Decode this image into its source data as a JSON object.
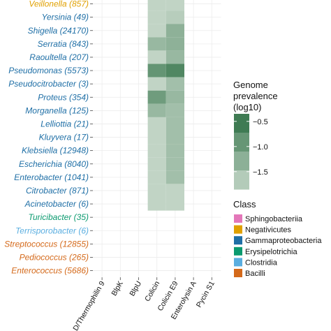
{
  "chart_data": {
    "type": "heatmap",
    "columns": [
      "D/Thermophilin 9",
      "BlpK",
      "BlpU",
      "Colicin",
      "Colicin E9",
      "Enterolysin A",
      "Pycin S1"
    ],
    "rows": [
      {
        "label": "Veillonella (857)",
        "class": "Negativicutes"
      },
      {
        "label": "Yersinia (49)",
        "class": "Gammaproteobacteria"
      },
      {
        "label": "Shigella (24170)",
        "class": "Gammaproteobacteria"
      },
      {
        "label": "Serratia (843)",
        "class": "Gammaproteobacteria"
      },
      {
        "label": "Raoultella (207)",
        "class": "Gammaproteobacteria"
      },
      {
        "label": "Pseudomonas (5573)",
        "class": "Gammaproteobacteria"
      },
      {
        "label": "Pseudocitrobacter (3)",
        "class": "Gammaproteobacteria"
      },
      {
        "label": "Proteus (354)",
        "class": "Gammaproteobacteria"
      },
      {
        "label": "Morganella (125)",
        "class": "Gammaproteobacteria"
      },
      {
        "label": "Lelliottia (21)",
        "class": "Gammaproteobacteria"
      },
      {
        "label": "Kluyvera (17)",
        "class": "Gammaproteobacteria"
      },
      {
        "label": "Klebsiella (12948)",
        "class": "Gammaproteobacteria"
      },
      {
        "label": "Escherichia (8040)",
        "class": "Gammaproteobacteria"
      },
      {
        "label": "Enterobacter (1041)",
        "class": "Gammaproteobacteria"
      },
      {
        "label": "Citrobacter (871)",
        "class": "Gammaproteobacteria"
      },
      {
        "label": "Acinetobacter (6)",
        "class": "Gammaproteobacteria"
      },
      {
        "label": "Turicibacter (35)",
        "class": "Erysipelotrichia"
      },
      {
        "label": "Terrisporobacter (6)",
        "class": "Clostridia"
      },
      {
        "label": "Streptococcus (12855)",
        "class": "Bacilli"
      },
      {
        "label": "Pediococcus (265)",
        "class": "Bacilli"
      },
      {
        "label": "Enterococcus (5686)",
        "class": "Bacilli"
      }
    ],
    "cells": [
      {
        "row": 0,
        "col": 3,
        "value": -1.8
      },
      {
        "row": 0,
        "col": 4,
        "value": -1.8
      },
      {
        "row": 1,
        "col": 3,
        "value": -1.8
      },
      {
        "row": 1,
        "col": 4,
        "value": -1.7
      },
      {
        "row": 2,
        "col": 3,
        "value": -1.8
      },
      {
        "row": 2,
        "col": 4,
        "value": -1.3
      },
      {
        "row": 3,
        "col": 3,
        "value": -1.4
      },
      {
        "row": 3,
        "col": 4,
        "value": -1.3
      },
      {
        "row": 4,
        "col": 3,
        "value": -1.8
      },
      {
        "row": 4,
        "col": 4,
        "value": -1.4
      },
      {
        "row": 5,
        "col": 3,
        "value": -0.9
      },
      {
        "row": 5,
        "col": 4,
        "value": -0.7
      },
      {
        "row": 6,
        "col": 3,
        "value": -1.8
      },
      {
        "row": 6,
        "col": 4,
        "value": -1.5
      },
      {
        "row": 7,
        "col": 3,
        "value": -1.0
      },
      {
        "row": 7,
        "col": 4,
        "value": -1.4
      },
      {
        "row": 8,
        "col": 3,
        "value": -1.4
      },
      {
        "row": 8,
        "col": 4,
        "value": -1.5
      },
      {
        "row": 9,
        "col": 3,
        "value": -1.8
      },
      {
        "row": 9,
        "col": 4,
        "value": -1.5
      },
      {
        "row": 10,
        "col": 3,
        "value": -1.8
      },
      {
        "row": 10,
        "col": 4,
        "value": -1.5
      },
      {
        "row": 11,
        "col": 3,
        "value": -1.8
      },
      {
        "row": 11,
        "col": 4,
        "value": -1.5
      },
      {
        "row": 12,
        "col": 3,
        "value": -1.8
      },
      {
        "row": 12,
        "col": 4,
        "value": -1.5
      },
      {
        "row": 13,
        "col": 3,
        "value": -1.8
      },
      {
        "row": 13,
        "col": 4,
        "value": -1.5
      },
      {
        "row": 14,
        "col": 3,
        "value": -1.8
      },
      {
        "row": 14,
        "col": 4,
        "value": -1.8
      },
      {
        "row": 15,
        "col": 3,
        "value": -1.8
      },
      {
        "row": 15,
        "col": 4,
        "value": -1.8
      }
    ],
    "legend_color": {
      "title": [
        "Genome",
        "prevalence",
        "(log10)"
      ],
      "ticks": [
        "−0.5",
        "−1.0",
        "−1.5"
      ]
    },
    "legend_class": {
      "title": "Class",
      "entries": [
        {
          "name": "Sphingobacteriia",
          "color": "#e377b9"
        },
        {
          "name": "Negativicutes",
          "color": "#e0a000"
        },
        {
          "name": "Gammaproteobacteria",
          "color": "#1f6fa6"
        },
        {
          "name": "Erysipelotrichia",
          "color": "#0b9a6f"
        },
        {
          "name": "Clostridia",
          "color": "#5aaee0"
        },
        {
          "name": "Bacilli",
          "color": "#d4691a"
        }
      ]
    }
  }
}
